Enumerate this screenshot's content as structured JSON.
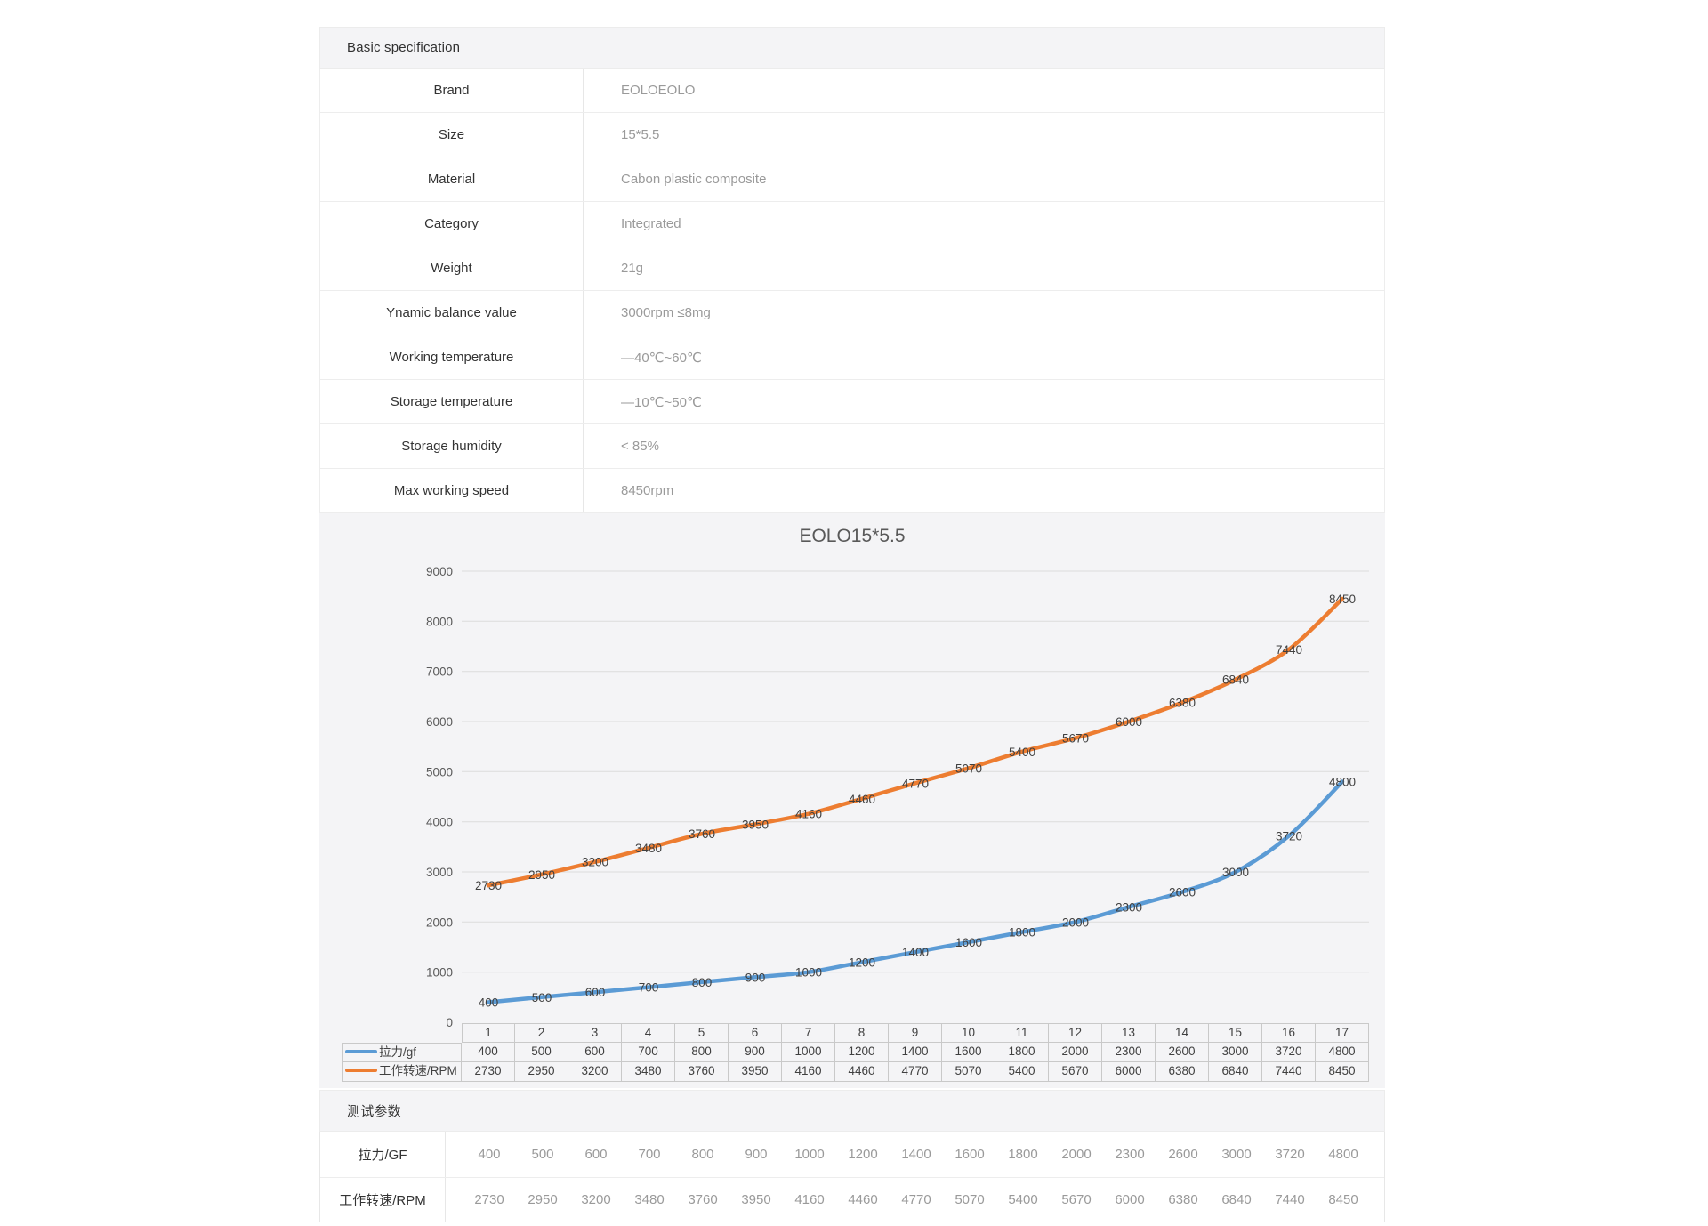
{
  "spec_table": {
    "header": "Basic specification",
    "rows": [
      {
        "label": "Brand",
        "value": "EOLOEOLO"
      },
      {
        "label": "Size",
        "value": "15*5.5"
      },
      {
        "label": "Material",
        "value": "Cabon plastic composite"
      },
      {
        "label": "Category",
        "value": "Integrated"
      },
      {
        "label": "Weight",
        "value": "21g"
      },
      {
        "label": "Ynamic balance value",
        "value": "3000rpm ≤8mg"
      },
      {
        "label": "Working temperature",
        "value": "—40℃~60℃"
      },
      {
        "label": "Storage temperature",
        "value": "—10℃~50℃"
      },
      {
        "label": "Storage humidity",
        "value": "< 85%"
      },
      {
        "label": "Max working speed",
        "value": "8450rpm"
      }
    ]
  },
  "chart_data": {
    "type": "line",
    "title": "EOLO15*5.5",
    "categories": [
      "1",
      "2",
      "3",
      "4",
      "5",
      "6",
      "7",
      "8",
      "9",
      "10",
      "11",
      "12",
      "13",
      "14",
      "15",
      "16",
      "17"
    ],
    "series": [
      {
        "name": "拉力/gf",
        "color": "#5B9BD5",
        "values": [
          400,
          500,
          600,
          700,
          800,
          900,
          1000,
          1200,
          1400,
          1600,
          1800,
          2000,
          2300,
          2600,
          3000,
          3720,
          4800
        ]
      },
      {
        "name": "工作转速/RPM",
        "color": "#ED7D31",
        "values": [
          2730,
          2950,
          3200,
          3480,
          3760,
          3950,
          4160,
          4460,
          4770,
          5070,
          5400,
          5670,
          6000,
          6380,
          6840,
          7440,
          8450
        ]
      }
    ],
    "ylim": [
      0,
      9000
    ],
    "y_ticks": [
      0,
      1000,
      2000,
      3000,
      4000,
      5000,
      6000,
      7000,
      8000,
      9000
    ],
    "grid": true,
    "smooth": true,
    "data_labels": true,
    "legend_position": "bottom-table",
    "xlabel": "",
    "ylabel": ""
  },
  "test_params": {
    "header": "测试参数",
    "rows": [
      {
        "label": "拉力/GF",
        "values": [
          "400",
          "500",
          "600",
          "700",
          "800",
          "900",
          "1000",
          "1200",
          "1400",
          "1600",
          "1800",
          "2000",
          "2300",
          "2600",
          "3000",
          "3720",
          "4800"
        ]
      },
      {
        "label": "工作转速/RPM",
        "values": [
          "2730",
          "2950",
          "3200",
          "3480",
          "3760",
          "3950",
          "4160",
          "4460",
          "4770",
          "5070",
          "5400",
          "5670",
          "6000",
          "6380",
          "6840",
          "7440",
          "8450"
        ]
      }
    ]
  }
}
